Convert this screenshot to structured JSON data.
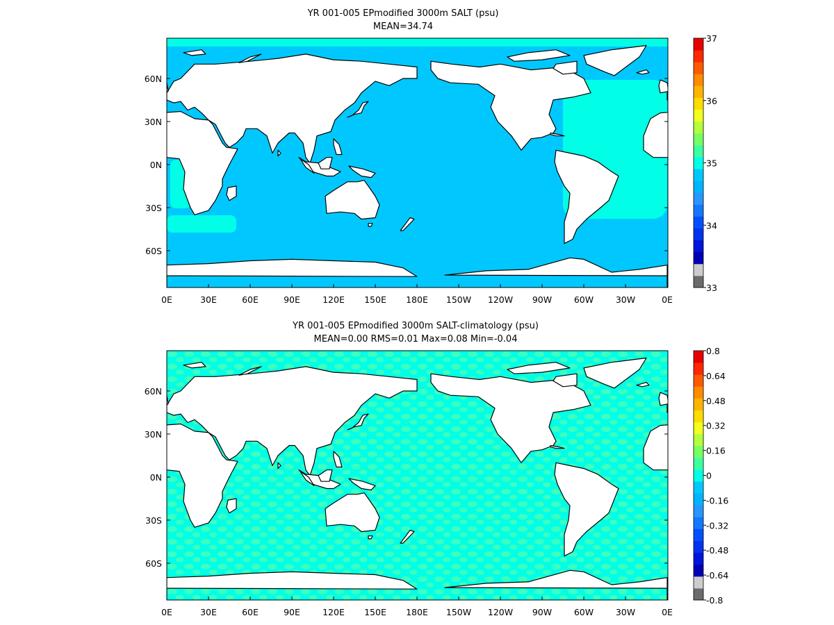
{
  "colors": {
    "scale_top": [
      "#6b6b6b",
      "#cccccc",
      "#0000b4",
      "#0014dc",
      "#0032f0",
      "#0050ff",
      "#1478ff",
      "#2896ff",
      "#00b4ff",
      "#00c8ff",
      "#00ffe6",
      "#3cffa0",
      "#78ff64",
      "#b4ff3c",
      "#f0ff1e",
      "#ffdc00",
      "#ffb400",
      "#ff8c00",
      "#ff5a00",
      "#ff2800",
      "#e60000"
    ],
    "scale_bottom": [
      "#6b6b6b",
      "#cccccc",
      "#0000b4",
      "#0014dc",
      "#0032f0",
      "#0050ff",
      "#1478ff",
      "#2896ff",
      "#00b4ff",
      "#00c8ff",
      "#00ffe6",
      "#3cffa0",
      "#78ff64",
      "#b4ff3c",
      "#f0ff1e",
      "#ffdc00",
      "#ffb400",
      "#ff8c00",
      "#ff5a00",
      "#ff2800",
      "#e60000"
    ],
    "ocean_top": "#00c8ff",
    "ocean_top_high": "#00ffe6",
    "ocean_bottom_a": "#00ffe6",
    "ocean_bottom_b": "#3cffc0",
    "land": "#ffffff",
    "coast": "#000000"
  },
  "panels": [
    {
      "title_line1": "YR 001-005 EPmodified 3000m SALT (psu)",
      "title_line2": "MEAN=34.74",
      "colorbar_labels": [
        "37",
        "36",
        "35",
        "34",
        "33"
      ]
    },
    {
      "title_line1": "YR 001-005 EPmodified 3000m SALT-climatology (psu)",
      "title_line2": "MEAN=0.00   RMS=0.01   Max=0.08   Min=-0.04",
      "colorbar_labels": [
        "0.8",
        "0.64",
        "0.48",
        "0.32",
        "0.16",
        "0",
        "-0.16",
        "-0.32",
        "-0.48",
        "-0.64",
        "-0.8"
      ]
    }
  ],
  "axes": {
    "lon_ticks": [
      "0E",
      "30E",
      "60E",
      "90E",
      "120E",
      "150E",
      "180E",
      "150W",
      "120W",
      "90W",
      "60W",
      "30W",
      "0E"
    ],
    "lat_ticks": [
      "60N",
      "30N",
      "0N",
      "30S",
      "60S"
    ]
  }
}
